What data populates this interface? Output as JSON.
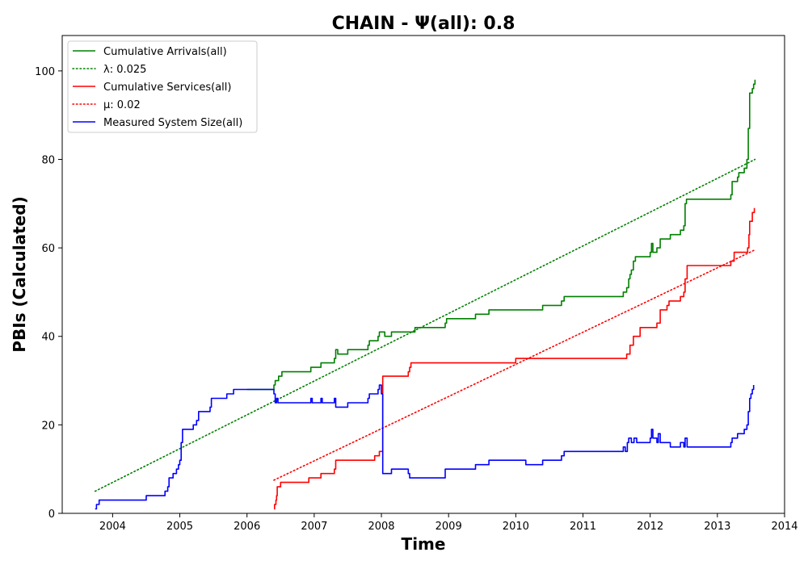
{
  "chart_data": {
    "type": "line",
    "title": "CHAIN -  Ψ(all): 0.8",
    "xlabel": "Time",
    "ylabel": "PBIs (Calculated)",
    "xlim": [
      2003.25,
      2014.0
    ],
    "ylim": [
      0,
      108
    ],
    "xticks": [
      "2004",
      "2005",
      "2006",
      "2007",
      "2008",
      "2009",
      "2010",
      "2011",
      "2012",
      "2013",
      "2014"
    ],
    "yticks": [
      "0",
      "20",
      "40",
      "60",
      "80",
      "100"
    ],
    "legend_position": "top-left",
    "grid": false,
    "series": [
      {
        "name": "Cumulative Arrivals(all)",
        "color": "#008000",
        "style": "solid",
        "points": [
          [
            2006.0,
            28
          ],
          [
            2006.4,
            29
          ],
          [
            2006.42,
            30
          ],
          [
            2006.47,
            31
          ],
          [
            2006.52,
            32
          ],
          [
            2006.95,
            33
          ],
          [
            2007.1,
            34
          ],
          [
            2007.3,
            35
          ],
          [
            2007.32,
            37
          ],
          [
            2007.35,
            36
          ],
          [
            2007.5,
            37
          ],
          [
            2007.8,
            38
          ],
          [
            2007.82,
            39
          ],
          [
            2007.95,
            40
          ],
          [
            2007.97,
            41
          ],
          [
            2008.05,
            40
          ],
          [
            2008.15,
            41
          ],
          [
            2008.5,
            42
          ],
          [
            2008.95,
            43
          ],
          [
            2008.97,
            44
          ],
          [
            2009.4,
            45
          ],
          [
            2009.6,
            46
          ],
          [
            2010.4,
            47
          ],
          [
            2010.68,
            48
          ],
          [
            2010.72,
            49
          ],
          [
            2011.6,
            50
          ],
          [
            2011.65,
            51
          ],
          [
            2011.68,
            53
          ],
          [
            2011.7,
            54
          ],
          [
            2011.72,
            55
          ],
          [
            2011.75,
            57
          ],
          [
            2011.78,
            58
          ],
          [
            2012.0,
            59
          ],
          [
            2012.02,
            61
          ],
          [
            2012.04,
            59
          ],
          [
            2012.1,
            60
          ],
          [
            2012.15,
            62
          ],
          [
            2012.3,
            63
          ],
          [
            2012.45,
            64
          ],
          [
            2012.5,
            65
          ],
          [
            2012.52,
            70
          ],
          [
            2012.54,
            71
          ],
          [
            2013.2,
            72
          ],
          [
            2013.22,
            75
          ],
          [
            2013.3,
            76
          ],
          [
            2013.32,
            77
          ],
          [
            2013.4,
            78
          ],
          [
            2013.44,
            80
          ],
          [
            2013.46,
            87
          ],
          [
            2013.48,
            95
          ],
          [
            2013.52,
            96
          ],
          [
            2013.54,
            97
          ],
          [
            2013.56,
            98
          ]
        ]
      },
      {
        "name": "λ: 0.025",
        "color": "#008000",
        "style": "dotted",
        "points": [
          [
            2003.74,
            5
          ],
          [
            2013.56,
            80
          ]
        ]
      },
      {
        "name": "Cumulative Services(all)",
        "color": "#ff0000",
        "style": "solid",
        "points": [
          [
            2006.4,
            1
          ],
          [
            2006.41,
            2
          ],
          [
            2006.43,
            3
          ],
          [
            2006.44,
            4
          ],
          [
            2006.45,
            6
          ],
          [
            2006.5,
            7
          ],
          [
            2006.92,
            8
          ],
          [
            2007.1,
            9
          ],
          [
            2007.3,
            10
          ],
          [
            2007.32,
            12
          ],
          [
            2007.9,
            13
          ],
          [
            2007.97,
            14
          ],
          [
            2008.01,
            14
          ],
          [
            2008.02,
            31
          ],
          [
            2008.4,
            32
          ],
          [
            2008.42,
            33
          ],
          [
            2008.44,
            34
          ],
          [
            2010.0,
            35
          ],
          [
            2011.65,
            36
          ],
          [
            2011.7,
            38
          ],
          [
            2011.75,
            40
          ],
          [
            2011.85,
            42
          ],
          [
            2012.1,
            43
          ],
          [
            2012.15,
            46
          ],
          [
            2012.25,
            47
          ],
          [
            2012.28,
            48
          ],
          [
            2012.45,
            49
          ],
          [
            2012.5,
            50
          ],
          [
            2012.52,
            53
          ],
          [
            2012.55,
            56
          ],
          [
            2013.2,
            57
          ],
          [
            2013.25,
            59
          ],
          [
            2013.45,
            60
          ],
          [
            2013.47,
            63
          ],
          [
            2013.48,
            66
          ],
          [
            2013.52,
            68
          ],
          [
            2013.55,
            69
          ]
        ]
      },
      {
        "name": "μ: 0.02",
        "color": "#ff0000",
        "style": "dotted",
        "points": [
          [
            2006.4,
            7.5
          ],
          [
            2013.55,
            59.5
          ]
        ]
      },
      {
        "name": "Measured System Size(all)",
        "color": "#0000ff",
        "style": "solid",
        "points": [
          [
            2003.74,
            1
          ],
          [
            2003.76,
            2
          ],
          [
            2003.8,
            3
          ],
          [
            2004.5,
            4
          ],
          [
            2004.78,
            5
          ],
          [
            2004.82,
            6
          ],
          [
            2004.84,
            8
          ],
          [
            2004.9,
            9
          ],
          [
            2004.95,
            10
          ],
          [
            2004.98,
            11
          ],
          [
            2005.0,
            12
          ],
          [
            2005.02,
            16
          ],
          [
            2005.04,
            19
          ],
          [
            2005.2,
            20
          ],
          [
            2005.25,
            21
          ],
          [
            2005.28,
            23
          ],
          [
            2005.45,
            24
          ],
          [
            2005.47,
            26
          ],
          [
            2005.7,
            27
          ],
          [
            2005.8,
            28
          ],
          [
            2006.4,
            27
          ],
          [
            2006.42,
            25
          ],
          [
            2006.44,
            26
          ],
          [
            2006.46,
            25
          ],
          [
            2006.95,
            26
          ],
          [
            2006.97,
            25
          ],
          [
            2007.1,
            26
          ],
          [
            2007.12,
            25
          ],
          [
            2007.3,
            26
          ],
          [
            2007.32,
            24
          ],
          [
            2007.5,
            25
          ],
          [
            2007.8,
            26
          ],
          [
            2007.82,
            27
          ],
          [
            2007.95,
            28
          ],
          [
            2007.97,
            29
          ],
          [
            2008.0,
            27
          ],
          [
            2008.02,
            9
          ],
          [
            2008.15,
            10
          ],
          [
            2008.4,
            9
          ],
          [
            2008.42,
            8
          ],
          [
            2008.95,
            10
          ],
          [
            2009.4,
            11
          ],
          [
            2009.6,
            12
          ],
          [
            2010.15,
            11
          ],
          [
            2010.4,
            12
          ],
          [
            2010.68,
            13
          ],
          [
            2010.72,
            14
          ],
          [
            2011.6,
            15
          ],
          [
            2011.63,
            14
          ],
          [
            2011.66,
            16
          ],
          [
            2011.68,
            17
          ],
          [
            2011.72,
            16
          ],
          [
            2011.76,
            17
          ],
          [
            2011.8,
            16
          ],
          [
            2012.0,
            17
          ],
          [
            2012.02,
            19
          ],
          [
            2012.04,
            17
          ],
          [
            2012.1,
            16
          ],
          [
            2012.12,
            18
          ],
          [
            2012.15,
            16
          ],
          [
            2012.3,
            15
          ],
          [
            2012.45,
            16
          ],
          [
            2012.5,
            15
          ],
          [
            2012.52,
            17
          ],
          [
            2012.55,
            15
          ],
          [
            2013.2,
            16
          ],
          [
            2013.22,
            17
          ],
          [
            2013.3,
            18
          ],
          [
            2013.4,
            19
          ],
          [
            2013.44,
            20
          ],
          [
            2013.46,
            23
          ],
          [
            2013.48,
            26
          ],
          [
            2013.5,
            27
          ],
          [
            2013.52,
            28
          ],
          [
            2013.54,
            29
          ]
        ]
      }
    ]
  }
}
